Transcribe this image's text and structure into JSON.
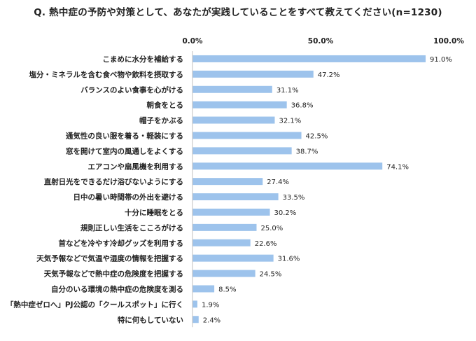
{
  "chart_data": {
    "type": "bar",
    "orientation": "horizontal",
    "title": "Q.  熱中症の予防や対策として、あなたが実践していることをすべて教えてください(n=1230)",
    "categories": [
      "こまめに水分を補給する",
      "塩分・ミネラルを含む食べ物や飲料を摂取する",
      "バランスのよい食事を心がける",
      "朝食をとる",
      "帽子をかぶる",
      "通気性の良い服を着る・軽装にする",
      "窓を開けて室内の風通しをよくする",
      "エアコンや扇風機を利用する",
      "直射日光をできるだけ浴びないようにする",
      "日中の暑い時間帯の外出を避ける",
      "十分に睡眠をとる",
      "規則正しい生活をこころがける",
      "首などを冷やす冷却グッズを利用する",
      "天気予報などで気温や湿度の情報を把握する",
      "天気予報などで熱中症の危険度を把握する",
      "自分のいる環境の熱中症の危険度を測る",
      "「熱中症ゼロへ」PJ公認の「クールスポット」に行く",
      "特に何もしていない"
    ],
    "values": [
      91.0,
      47.2,
      31.1,
      36.8,
      32.1,
      42.5,
      38.7,
      74.1,
      27.4,
      33.5,
      30.2,
      25.0,
      22.6,
      31.6,
      24.5,
      8.5,
      1.9,
      2.4
    ],
    "value_labels": [
      "91.0%",
      "47.2%",
      "31.1%",
      "36.8%",
      "32.1%",
      "42.5%",
      "38.7%",
      "74.1%",
      "27.4%",
      "33.5%",
      "30.2%",
      "25.0%",
      "22.6%",
      "31.6%",
      "24.5%",
      "8.5%",
      "1.9%",
      "2.4%"
    ],
    "xlim": [
      0,
      100
    ],
    "ticks": [
      "0.0%",
      "50.0%",
      "100.0%"
    ],
    "tick_values": [
      0,
      50,
      100
    ],
    "grid": false,
    "bar_color": "#9dc3ec",
    "text_color": "#222222"
  }
}
